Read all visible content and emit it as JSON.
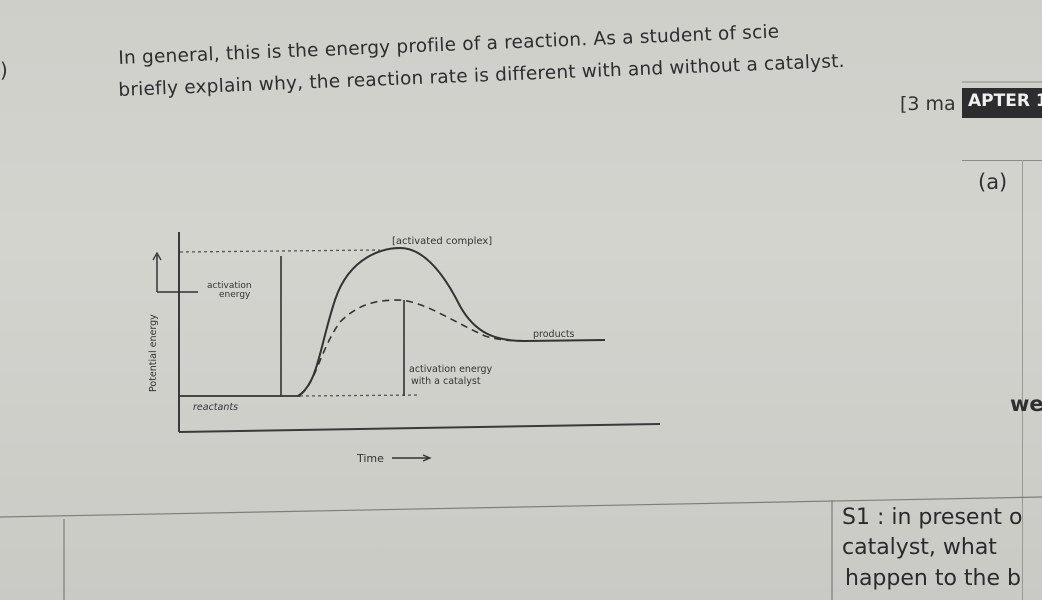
{
  "question": {
    "number": ")",
    "line1": "In general, this is the energy profile of a reaction. As a student of scie",
    "line2": "briefly explain why, the reaction rate is different with and without a catalyst.",
    "marks": "[3 ma"
  },
  "sidebar": {
    "chapter_label": "APTER 1",
    "part_label": "(a)",
    "partial_word": "wer"
  },
  "diagram": {
    "activated_complex": "[activated complex]",
    "activation_energy_line1": "activation",
    "activation_energy_line2": "energy",
    "products": "products",
    "catalyst_line1": "activation energy",
    "catalyst_line2": "with a catalyst",
    "reactants": "reactants",
    "y_axis": "Potential energy",
    "x_axis": "Time"
  },
  "answer": {
    "line1": "S1 : in present o",
    "line2": "catalyst, what",
    "line3": "happen to the b"
  }
}
